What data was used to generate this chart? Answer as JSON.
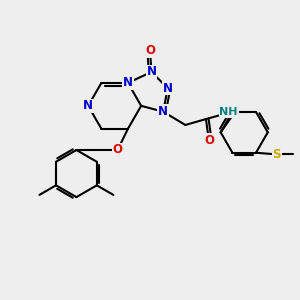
{
  "background_color": "#eeeeee",
  "figsize": [
    3.0,
    3.0
  ],
  "dpi": 100,
  "atom_colors": {
    "C": "#000000",
    "N": "#0000cc",
    "O": "#dd0000",
    "S": "#ccaa00",
    "H": "#008080"
  },
  "bond_lw": 1.5,
  "bond_color": "#000000",
  "font_size": 8.5,
  "xlim": [
    0,
    10
  ],
  "ylim": [
    0,
    10
  ]
}
